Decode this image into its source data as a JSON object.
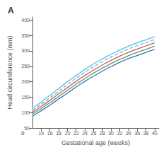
{
  "chart_data": {
    "type": "line",
    "title": "A",
    "xlabel": "Gestational age (weeks)",
    "ylabel": "Head circumference (mm)",
    "x": [
      12,
      13,
      14,
      15,
      16,
      17,
      18,
      19,
      20,
      21,
      22,
      23,
      24,
      25,
      26,
      27,
      28,
      29,
      30,
      31,
      32,
      33,
      34,
      35,
      36,
      37,
      38,
      39,
      40
    ],
    "series": [
      {
        "color": "#5bbde4",
        "line_style": "solid",
        "values": [
          114,
          124,
          134,
          145,
          156,
          167,
          178,
          189,
          200,
          210,
          220,
          230,
          240,
          249,
          258,
          266,
          274,
          282,
          289,
          296,
          303,
          309,
          315,
          321,
          326,
          331,
          336,
          341,
          346
        ]
      },
      {
        "color": "#5bbde4",
        "line_style": "dashed",
        "values": [
          107,
          117,
          127,
          137,
          148,
          158,
          169,
          180,
          191,
          201,
          211,
          221,
          231,
          240,
          249,
          257,
          265,
          273,
          280,
          287,
          294,
          300,
          306,
          312,
          317,
          322,
          327,
          332,
          337
        ]
      },
      {
        "color": "#d9534f",
        "line_style": "solid",
        "values": [
          101,
          110,
          120,
          130,
          140,
          150,
          161,
          171,
          181,
          191,
          201,
          211,
          220,
          229,
          238,
          246,
          254,
          262,
          269,
          276,
          283,
          289,
          295,
          301,
          306,
          311,
          316,
          321,
          326
        ]
      },
      {
        "color": "#5a9e6e",
        "line_style": "solid",
        "values": [
          95,
          104,
          113,
          123,
          132,
          142,
          152,
          162,
          172,
          182,
          192,
          201,
          210,
          219,
          228,
          236,
          244,
          251,
          259,
          266,
          272,
          278,
          284,
          290,
          295,
          300,
          305,
          310,
          315
        ]
      },
      {
        "color": "#3a6fb5",
        "line_style": "solid",
        "values": [
          88,
          97,
          106,
          115,
          124,
          134,
          144,
          153,
          163,
          173,
          183,
          192,
          201,
          210,
          218,
          226,
          234,
          242,
          249,
          256,
          263,
          269,
          275,
          280,
          285,
          290,
          295,
          300,
          305
        ]
      }
    ],
    "xlim": [
      12,
      41
    ],
    "ylim": [
      50,
      410
    ],
    "xticks": [
      14,
      16,
      18,
      20,
      22,
      24,
      26,
      28,
      30,
      32,
      34,
      36,
      38,
      40
    ],
    "yticks": [
      50,
      100,
      150,
      200,
      250,
      300,
      350,
      400
    ],
    "grid": false,
    "annotations": [
      {
        "text": "0"
      }
    ]
  }
}
